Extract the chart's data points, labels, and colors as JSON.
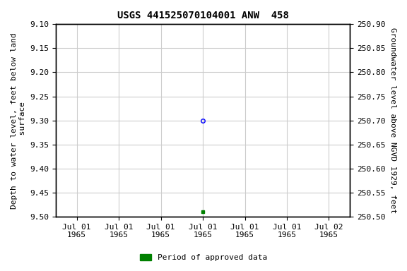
{
  "title": "USGS 441525070104001 ANW  458",
  "ylabel_left": "Depth to water level, feet below land\n surface",
  "ylabel_right": "Groundwater level above NGVD 1929, feet",
  "ylim_left": [
    9.5,
    9.1
  ],
  "ylim_right": [
    250.5,
    250.9
  ],
  "yticks_left": [
    9.1,
    9.15,
    9.2,
    9.25,
    9.3,
    9.35,
    9.4,
    9.45,
    9.5
  ],
  "yticks_right": [
    250.9,
    250.85,
    250.8,
    250.75,
    250.7,
    250.65,
    250.6,
    250.55,
    250.5
  ],
  "xtick_positions": [
    0,
    1,
    2,
    3,
    4,
    5,
    6
  ],
  "xtick_labels": [
    "Jul 01\n1965",
    "Jul 01\n1965",
    "Jul 01\n1965",
    "Jul 01\n1965",
    "Jul 01\n1965",
    "Jul 01\n1965",
    "Jul 02\n1965"
  ],
  "xlim": [
    -0.5,
    6.5
  ],
  "data_blue_x": 3,
  "data_blue_y": 9.3,
  "data_green_x": 3,
  "data_green_y": 9.49,
  "grid_color": "#cccccc",
  "background_color": "#ffffff",
  "legend_label": "Period of approved data",
  "legend_color": "#008000",
  "font_family": "monospace",
  "title_fontsize": 10,
  "label_fontsize": 8,
  "tick_fontsize": 8
}
